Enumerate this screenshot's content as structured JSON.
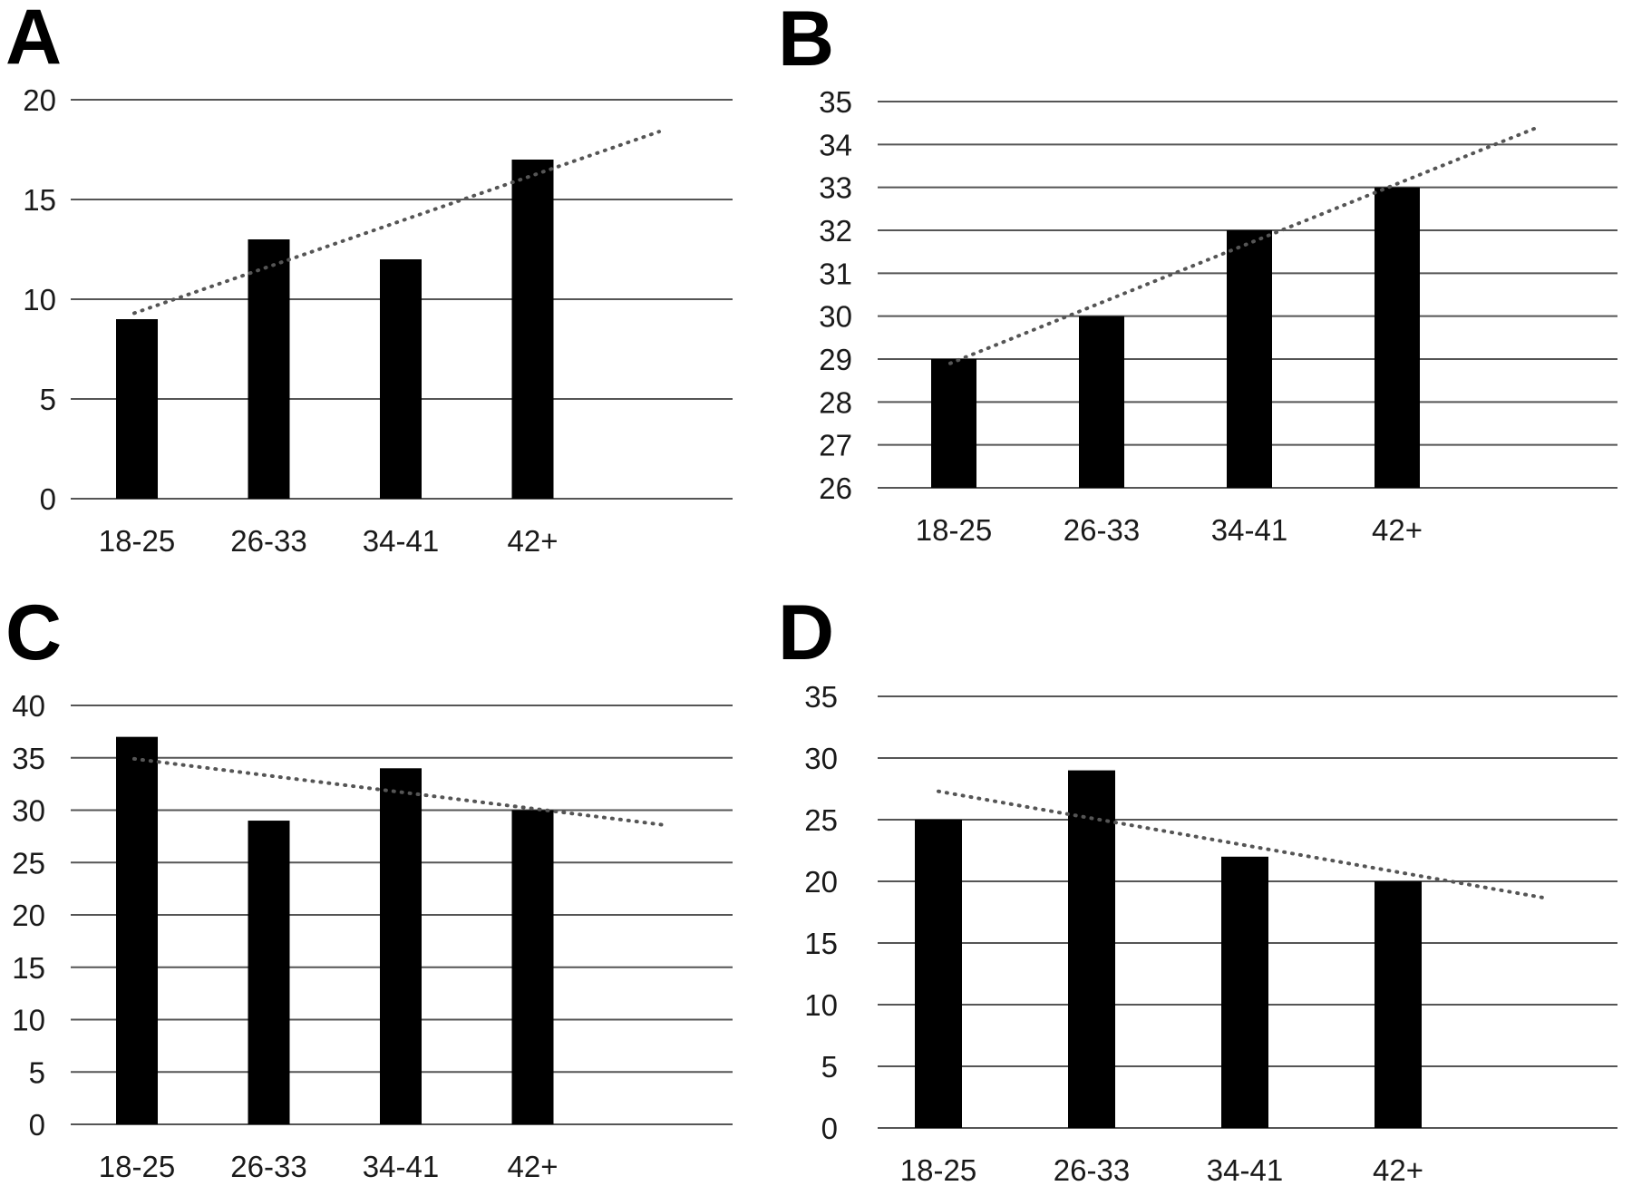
{
  "chart_data": [
    {
      "type": "bar",
      "panel": "A",
      "categories": [
        "18-25",
        "26-33",
        "34-41",
        "42+"
      ],
      "values": [
        9,
        13,
        12,
        17
      ],
      "ylim": [
        0,
        20
      ],
      "yticks": [
        0,
        5,
        10,
        15,
        20
      ],
      "trendline": {
        "style": "dotted",
        "start": 9.3,
        "end": 18.4
      },
      "grid": true
    },
    {
      "type": "bar",
      "panel": "B",
      "categories": [
        "18-25",
        "26-33",
        "34-41",
        "42+"
      ],
      "values": [
        29,
        30,
        32,
        33
      ],
      "ylim": [
        26,
        35
      ],
      "yticks": [
        26,
        27,
        28,
        29,
        30,
        31,
        32,
        33,
        34,
        35
      ],
      "trendline": {
        "style": "dotted",
        "start": 28.9,
        "end": 34.4
      },
      "grid": true
    },
    {
      "type": "bar",
      "panel": "C",
      "categories": [
        "18-25",
        "26-33",
        "34-41",
        "42+"
      ],
      "values": [
        37,
        29,
        34,
        30
      ],
      "ylim": [
        0,
        40
      ],
      "yticks": [
        0,
        5,
        10,
        15,
        20,
        25,
        30,
        35,
        40
      ],
      "trendline": {
        "style": "dotted",
        "start": 34.9,
        "end": 28.6
      },
      "grid": true
    },
    {
      "type": "bar",
      "panel": "D",
      "categories": [
        "18-25",
        "26-33",
        "34-41",
        "42+"
      ],
      "values": [
        25,
        29,
        22,
        20
      ],
      "ylim": [
        0,
        35
      ],
      "yticks": [
        0,
        5,
        10,
        15,
        20,
        25,
        30,
        35
      ],
      "trendline": {
        "style": "dotted",
        "start": 27.3,
        "end": 18.6
      },
      "grid": true
    }
  ],
  "colors": {
    "bar": "#000000",
    "grid": "#555555",
    "trend": "#555555"
  }
}
